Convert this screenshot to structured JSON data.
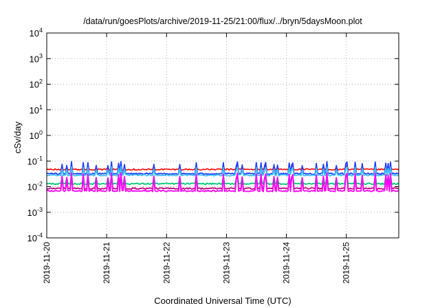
{
  "chart_data": {
    "type": "line",
    "title": "/data/run/goesPlots/archive/2019-11-25/21:00/flux/../bryn/5daysMoon.plot",
    "xlabel": "Coordinated Universal Time (UTC)",
    "ylabel": "cSv/day",
    "y_scale": "log",
    "ylim": [
      0.0001,
      10000
    ],
    "y_ticks": [
      {
        "value": 0.0001,
        "base": "10",
        "exp": "-4"
      },
      {
        "value": 0.001,
        "base": "10",
        "exp": "-3"
      },
      {
        "value": 0.01,
        "base": "10",
        "exp": "-2"
      },
      {
        "value": 0.1,
        "base": "10",
        "exp": "-1"
      },
      {
        "value": 1,
        "base": "10",
        "exp": "0"
      },
      {
        "value": 10,
        "base": "10",
        "exp": "1"
      },
      {
        "value": 100,
        "base": "10",
        "exp": "2"
      },
      {
        "value": 1000,
        "base": "10",
        "exp": "3"
      },
      {
        "value": 10000,
        "base": "10",
        "exp": "4"
      }
    ],
    "xlim": [
      "2019-11-20T00:00",
      "2019-11-25T21:00"
    ],
    "x_ticks": [
      "2019-11-20",
      "2019-11-21",
      "2019-11-22",
      "2019-11-23",
      "2019-11-24",
      "2019-11-25"
    ],
    "grid": true,
    "legend": "none",
    "series": [
      {
        "color": "#ff0000",
        "base": 0.047,
        "spike": 0.068
      },
      {
        "color": "#1e3cff",
        "base": 0.032,
        "spike": 0.095
      },
      {
        "color": "#40c0ff",
        "base": 0.028,
        "spike": 0.06
      },
      {
        "color": "#00c878",
        "base": 0.013,
        "spike": 0.03
      },
      {
        "color": "#c00080",
        "base": 0.0085,
        "spike": 0.03
      },
      {
        "color": "#ff00ff",
        "base": 0.0068,
        "spike": 0.035
      }
    ]
  }
}
